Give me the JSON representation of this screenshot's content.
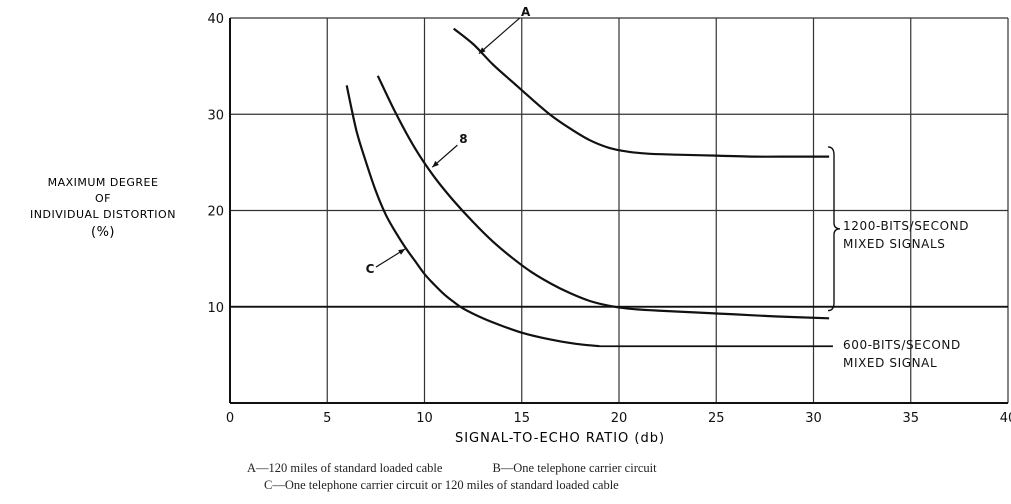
{
  "chart_data": {
    "type": "line",
    "xlabel": "SIGNAL-TO-ECHO RATIO (db)",
    "ylabel_lines": [
      "MAXIMUM DEGREE",
      "OF",
      "INDIVIDUAL DISTORTION",
      "(%)"
    ],
    "xlim": [
      0,
      40
    ],
    "ylim": [
      0,
      40
    ],
    "xticks": [
      0,
      5,
      10,
      15,
      20,
      25,
      30,
      35,
      40
    ],
    "yticks": [
      10,
      20,
      30,
      40
    ],
    "grid": true,
    "series": [
      {
        "name": "A",
        "x": [
          11.5,
          12.5,
          13.5,
          14.5,
          15.5,
          16.5,
          17.5,
          18.5,
          19.5,
          20.5,
          21.5,
          23,
          25,
          27,
          29,
          30.8
        ],
        "y": [
          38.9,
          37.3,
          35.2,
          33.4,
          31.6,
          29.9,
          28.5,
          27.3,
          26.5,
          26.1,
          25.9,
          25.8,
          25.7,
          25.6,
          25.6,
          25.6
        ]
      },
      {
        "name": "8",
        "x": [
          7.6,
          8.5,
          9.5,
          10.5,
          11.5,
          12.5,
          13.5,
          14.5,
          15.5,
          16.5,
          17.5,
          18.5,
          19.5,
          20.5,
          22,
          24,
          26,
          28,
          30.8
        ],
        "y": [
          34.0,
          30.2,
          26.5,
          23.5,
          21.0,
          18.8,
          16.8,
          15.1,
          13.6,
          12.4,
          11.4,
          10.6,
          10.1,
          9.8,
          9.6,
          9.4,
          9.2,
          9.0,
          8.8
        ]
      },
      {
        "name": "C",
        "x": [
          6.0,
          6.5,
          7.0,
          7.5,
          8.0,
          8.5,
          9.0,
          9.5,
          10.0,
          10.5,
          11.0,
          11.5,
          12.0,
          13.0,
          14.0,
          15.0,
          16.0,
          17.0,
          18.0,
          19.0
        ],
        "y": [
          33.0,
          28.3,
          25.0,
          22.0,
          19.6,
          17.8,
          16.2,
          14.8,
          13.4,
          12.3,
          11.3,
          10.5,
          9.8,
          8.8,
          8.0,
          7.3,
          6.8,
          6.4,
          6.1,
          5.9
        ]
      }
    ],
    "reference_lines": [
      {
        "y": 10,
        "x_start": 0,
        "x_end": 40
      },
      {
        "y": 5.9,
        "x_start": 19,
        "x_end": 31
      }
    ],
    "curve_labels": [
      {
        "text": "A",
        "at": [
          15.2,
          40.2
        ],
        "arrow_to": [
          12.8,
          36.3
        ]
      },
      {
        "text": "8",
        "at": [
          12.0,
          27.0
        ],
        "arrow_to": [
          10.4,
          24.5
        ]
      },
      {
        "text": "C",
        "at": [
          7.2,
          13.5
        ],
        "arrow_to": [
          9.0,
          16.0
        ]
      }
    ],
    "annotations": [
      {
        "lines": [
          "1200-BITS/SECOND",
          "MIXED SIGNALS"
        ],
        "bracket_y": [
          26.6,
          9.6
        ]
      },
      {
        "lines": [
          "600-BITS/SECOND",
          "MIXED SIGNAL"
        ]
      }
    ]
  },
  "captions": {
    "line1_a": "A—120 miles of standard loaded cable",
    "line1_b": "B—One telephone carrier circuit",
    "line2": "C—One telephone carrier circuit or 120 miles of standard loaded cable"
  }
}
